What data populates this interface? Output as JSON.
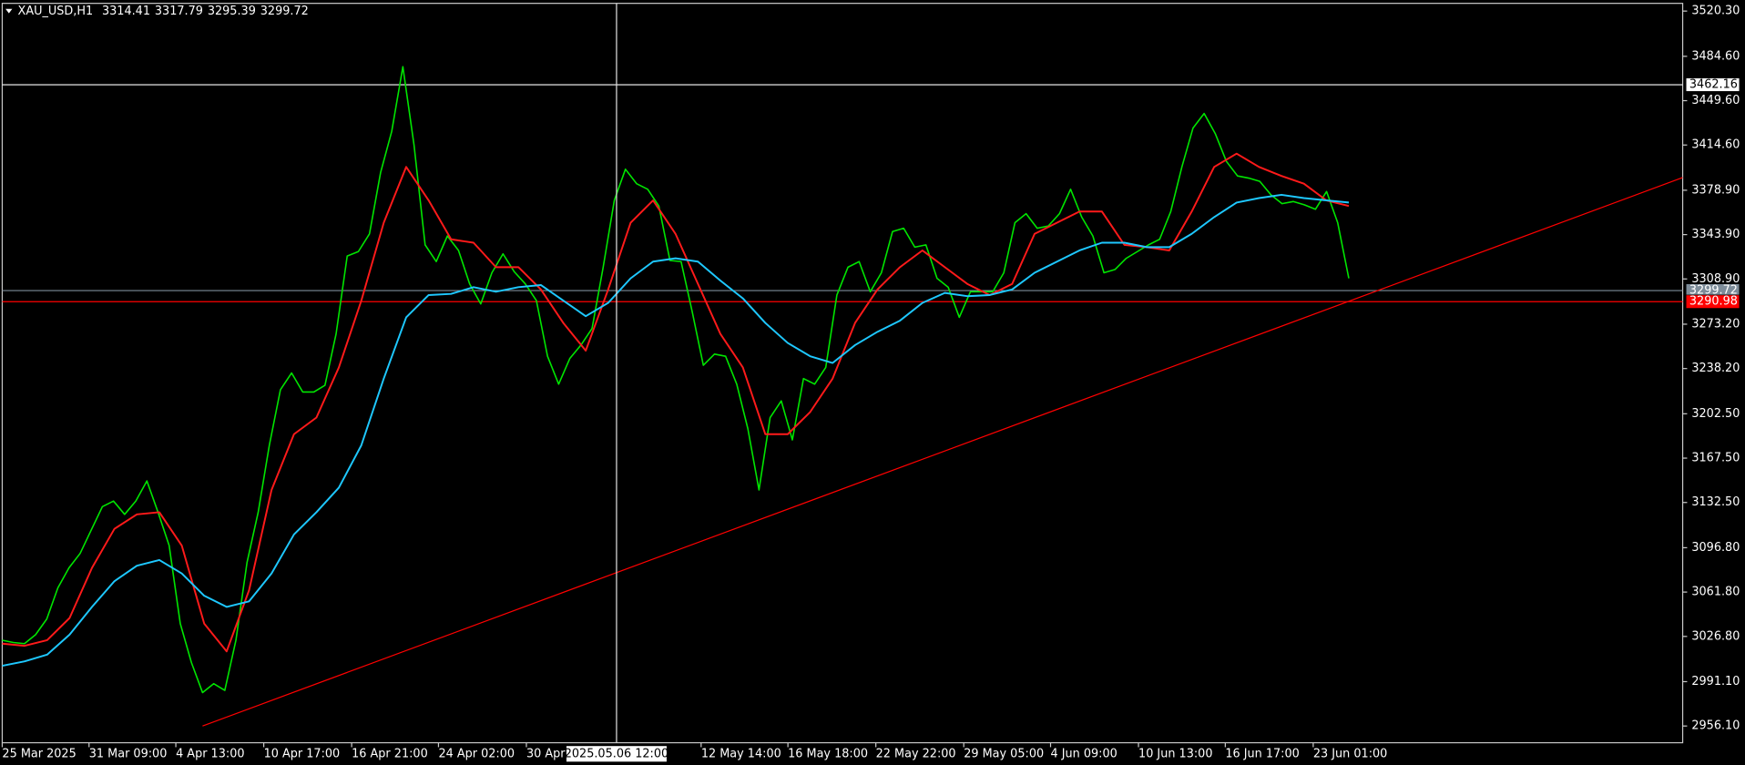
{
  "chart_data": {
    "type": "line",
    "title": "XAU_USD,H1",
    "ohlc": [
      3314.41,
      3317.79,
      3295.39,
      3299.72
    ],
    "xlim": [
      0,
      151
    ],
    "xticks": [
      {
        "value": 0,
        "label": "25 Mar 2025"
      },
      {
        "value": 7.8,
        "label": "31 Mar 09:00"
      },
      {
        "value": 15.6,
        "label": "4 Apr 13:00"
      },
      {
        "value": 23.5,
        "label": "10 Apr 17:00"
      },
      {
        "value": 31.4,
        "label": "16 Apr 21:00"
      },
      {
        "value": 39.2,
        "label": "24 Apr 02:00"
      },
      {
        "value": 47.1,
        "label": "30 Apr"
      },
      {
        "value": 62.8,
        "label": "12 May 14:00"
      },
      {
        "value": 70.6,
        "label": "16 May 18:00"
      },
      {
        "value": 78.5,
        "label": "22 May 22:00"
      },
      {
        "value": 86.4,
        "label": "29 May 05:00"
      },
      {
        "value": 94.2,
        "label": "4 Jun 09:00"
      },
      {
        "value": 102.1,
        "label": "10 Jun 13:00"
      },
      {
        "value": 109.9,
        "label": "16 Jun 17:00"
      },
      {
        "value": 117.8,
        "label": "23 Jun 01:00"
      }
    ],
    "ylim": [
      2942.9,
      3526.4
    ],
    "yticks": [
      {
        "value": 3520.3,
        "label": "3520.30"
      },
      {
        "value": 3484.6,
        "label": "3484.60"
      },
      {
        "value": 3449.6,
        "label": "3449.60"
      },
      {
        "value": 3414.6,
        "label": "3414.60"
      },
      {
        "value": 3378.9,
        "label": "3378.90"
      },
      {
        "value": 3343.9,
        "label": "3343.90"
      },
      {
        "value": 3308.9,
        "label": "3308.90"
      },
      {
        "value": 3273.2,
        "label": "3273.20"
      },
      {
        "value": 3238.2,
        "label": "3238.20"
      },
      {
        "value": 3202.5,
        "label": "3202.50"
      },
      {
        "value": 3167.5,
        "label": "3167.50"
      },
      {
        "value": 3132.5,
        "label": "3132.50"
      },
      {
        "value": 3096.8,
        "label": "3096.80"
      },
      {
        "value": 3061.8,
        "label": "3061.80"
      },
      {
        "value": 3026.8,
        "label": "3026.80"
      },
      {
        "value": 2991.1,
        "label": "2991.10"
      },
      {
        "value": 2956.1,
        "label": "2956.10"
      }
    ],
    "series": [
      {
        "color": "#00e600",
        "values": [
          3023.8,
          3022.0,
          3021.1,
          3028.2,
          3040.5,
          3065.1,
          3080.9,
          3092.3,
          3110.8,
          3129.2,
          3133.6,
          3123.1,
          3133.6,
          3149.5,
          3124.8,
          3098.5,
          3036.9,
          3006.2,
          2982.5,
          2989.5,
          2984.2,
          3023.8,
          3085.3,
          3124.8,
          3177.6,
          3221.5,
          3234.7,
          3219.7,
          3219.7,
          3225.0,
          3265.5,
          3327.0,
          3330.5,
          3344.5,
          3392.9,
          3425.4,
          3476.4,
          3414.8,
          3335.8,
          3322.6,
          3342.8,
          3331.4,
          3305.0,
          3289.2,
          3313.8,
          3328.7,
          3314.7,
          3305.0,
          3291.8,
          3247.9,
          3225.9,
          3246.1,
          3256.7,
          3269.8,
          3318.2,
          3370.9,
          3395.5,
          3384.1,
          3379.7,
          3366.5,
          3323.5,
          3322.6,
          3283.0,
          3240.8,
          3249.6,
          3247.9,
          3225.9,
          3190.7,
          3142.4,
          3199.5,
          3212.7,
          3181.9,
          3230.3,
          3225.9,
          3239.1,
          3296.2,
          3318.2,
          3322.6,
          3298.8,
          3313.8,
          3346.3,
          3348.9,
          3334.0,
          3335.8,
          3309.4,
          3302.4,
          3278.6,
          3298.8,
          3298.8,
          3298.8,
          3313.8,
          3353.3,
          3360.4,
          3348.9,
          3350.7,
          3360.4,
          3379.7,
          3357.7,
          3342.8,
          3313.8,
          3316.4,
          3325.2,
          3330.5,
          3335.8,
          3340.2,
          3362.1,
          3397.3,
          3428.0,
          3439.5,
          3423.6,
          3401.7,
          3390.2,
          3388.5,
          3385.9,
          3375.3,
          3368.3,
          3370.0,
          3367.4,
          3363.9,
          3377.9,
          3353.3,
          3309.4
        ]
      },
      {
        "color": "#ff1a1a",
        "values": [
          3021.1,
          3019.4,
          3023.8,
          3041.3,
          3080.9,
          3111.7,
          3123.1,
          3124.8,
          3098.5,
          3036.9,
          3015.0,
          3063.3,
          3142.4,
          3186.4,
          3199.5,
          3239.1,
          3291.8,
          3353.3,
          3397.3,
          3370.9,
          3340.2,
          3337.5,
          3318.2,
          3318.2,
          3300.6,
          3274.2,
          3252.3,
          3300.6,
          3353.3,
          3370.9,
          3344.5,
          3305.0,
          3265.5,
          3239.1,
          3186.4,
          3186.4,
          3203.9,
          3230.3,
          3274.2,
          3300.6,
          3318.2,
          3331.4,
          3318.2,
          3305.0,
          3296.2,
          3305.0,
          3344.5,
          3353.3,
          3362.1,
          3362.1,
          3335.8,
          3334.0,
          3331.4,
          3362.1,
          3397.3,
          3407.8,
          3397.3,
          3390.2,
          3384.1,
          3370.9,
          3366.5
        ]
      },
      {
        "color": "#1ec8ff",
        "values": [
          3003.6,
          3007.1,
          3012.4,
          3028.2,
          3050.1,
          3070.4,
          3082.6,
          3087.1,
          3076.5,
          3058.9,
          3050.1,
          3054.5,
          3076.5,
          3107.3,
          3124.8,
          3144.2,
          3177.6,
          3230.3,
          3278.6,
          3296.2,
          3297.1,
          3302.4,
          3298.8,
          3302.4,
          3304.1,
          3291.8,
          3279.5,
          3290.0,
          3309.4,
          3322.6,
          3325.2,
          3322.6,
          3307.6,
          3293.6,
          3274.2,
          3258.4,
          3247.9,
          3242.6,
          3256.7,
          3267.2,
          3276.0,
          3290.0,
          3297.9,
          3295.3,
          3296.2,
          3300.6,
          3313.8,
          3322.6,
          3331.4,
          3337.5,
          3337.5,
          3334.0,
          3334.0,
          3344.5,
          3357.7,
          3369.2,
          3372.7,
          3375.3,
          3372.7,
          3370.9,
          3369.2
        ]
      }
    ],
    "trendline": {
      "x": [
        18,
        151
      ],
      "y": [
        2956.1,
        3388.9
      ],
      "color": "#ff0000"
    },
    "price_lines": [
      {
        "value": 3462.16,
        "color": "#ffffff"
      },
      {
        "value": 3299.72,
        "color": "#7d8c99"
      },
      {
        "value": 3290.98,
        "color": "#ff0000"
      }
    ],
    "crosshair": {
      "x": 55.2,
      "label": "2025.05.06 12:00"
    }
  }
}
